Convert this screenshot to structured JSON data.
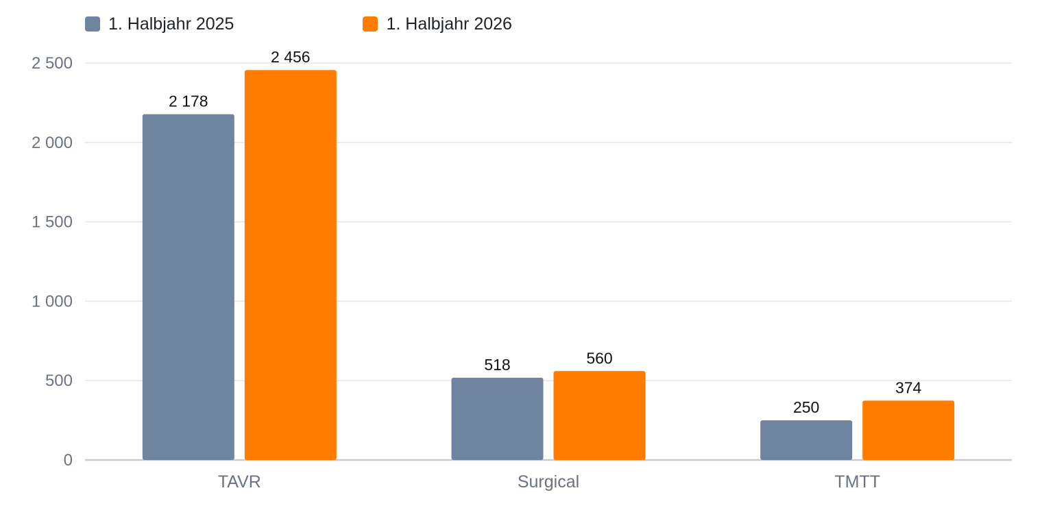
{
  "chart_data": {
    "type": "bar",
    "categories": [
      "TAVR",
      "Surgical",
      "TMTT"
    ],
    "series": [
      {
        "name": "1. Halbjahr 2025",
        "color": "#6f849f",
        "values": [
          2178,
          518,
          250
        ],
        "labels": [
          "2 178",
          "518",
          "250"
        ]
      },
      {
        "name": "1. Halbjahr 2026",
        "color": "#ff7c00",
        "values": [
          2456,
          560,
          374
        ],
        "labels": [
          "2 456",
          "560",
          "374"
        ]
      }
    ],
    "y_ticks": [
      0,
      500,
      1000,
      1500,
      2000,
      2500
    ],
    "y_tick_labels": [
      "0",
      "500",
      "1 000",
      "1 500",
      "2 000",
      "2 500"
    ],
    "ylim": [
      0,
      2500
    ],
    "title": "",
    "xlabel": "",
    "ylabel": "",
    "grid": true,
    "legend_position": "top-left",
    "colors": {
      "grid": "#e3e5e8",
      "axis": "#c9cbcf",
      "tick_text": "#6b7280"
    }
  }
}
